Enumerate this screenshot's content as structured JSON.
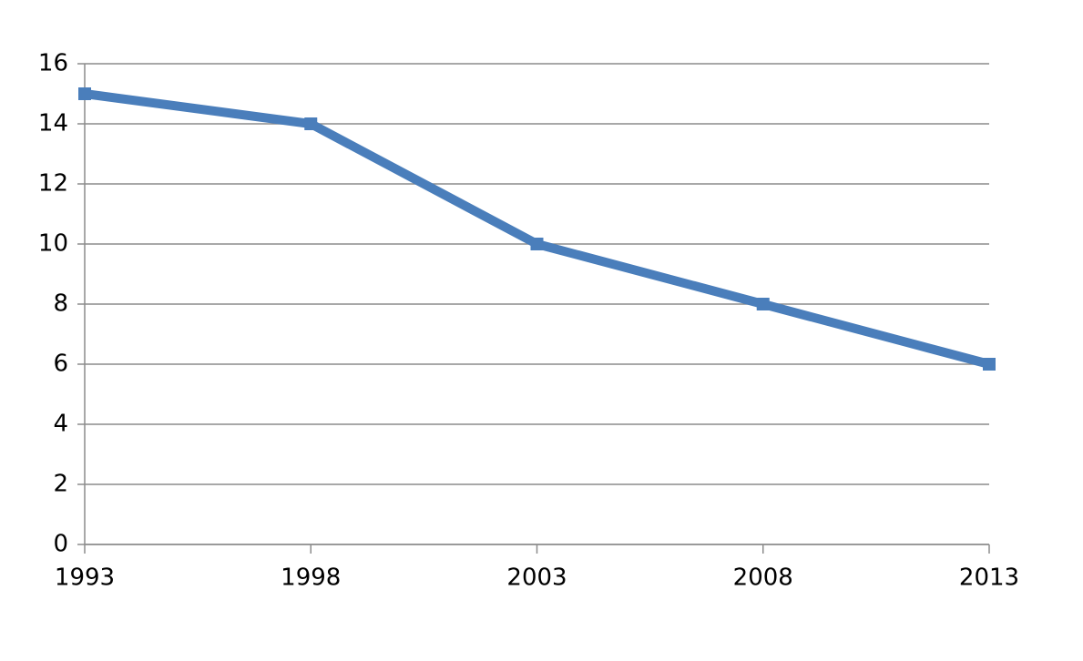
{
  "chart_data": {
    "type": "line",
    "x": [
      1993,
      1998,
      2003,
      2008,
      2013
    ],
    "series": [
      {
        "color": "#4a7ebb",
        "values": [
          15,
          14,
          10,
          8,
          6
        ]
      }
    ],
    "xlim": [
      1993,
      2013
    ],
    "xticks": [
      1993,
      1998,
      2003,
      2008,
      2013
    ],
    "ylim": [
      0,
      16
    ],
    "yticks": [
      0,
      2,
      4,
      6,
      8,
      10,
      12,
      14,
      16
    ],
    "grid": true
  }
}
